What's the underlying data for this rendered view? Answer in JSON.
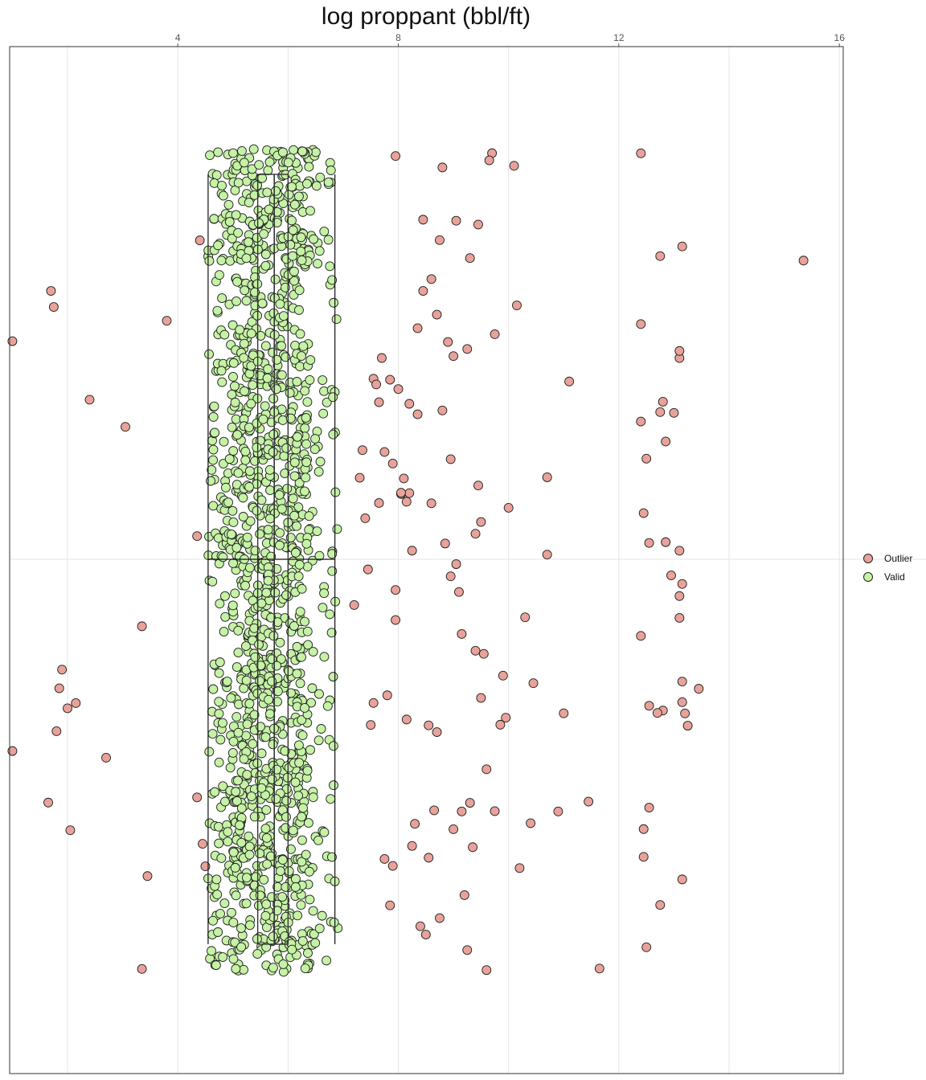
{
  "chart_data": {
    "type": "scatter",
    "title": "log proppant (bbl/ft)",
    "xlabel": "",
    "ylabel": "",
    "xlim": [
      0.95,
      16.07
    ],
    "xticks": [
      4,
      8,
      12,
      16
    ],
    "axis_position": "top",
    "grid": true,
    "jitter": "vertical",
    "legend_position": "right",
    "series": [
      {
        "name": "Outlier",
        "color": "#e8a29a",
        "x": [
          1.85,
          2.4,
          1.9,
          3.35,
          2.0,
          2.15,
          1.7,
          3.45,
          1.8,
          2.05,
          2.7,
          3.05,
          1.65,
          1.75,
          3.35,
          1.0,
          3.8,
          4.35,
          4.5,
          4.45,
          4.4,
          4.35,
          1.0,
          7.35,
          7.55,
          7.75,
          7.85,
          7.9,
          8.05,
          8.15,
          8.3,
          8.45,
          8.6,
          8.8,
          8.95,
          9.05,
          9.25,
          9.4,
          9.6,
          9.75,
          10.0,
          10.2,
          10.4,
          7.65,
          7.95,
          8.25,
          8.55,
          8.75,
          9.15,
          9.45,
          9.95,
          7.3,
          7.5,
          7.7,
          7.9,
          8.1,
          8.2,
          8.4,
          8.6,
          8.8,
          9.0,
          9.3,
          9.5,
          9.7,
          7.6,
          7.85,
          8.05,
          8.35,
          8.65,
          8.85,
          9.1,
          9.35,
          9.55,
          9.85,
          10.1,
          7.2,
          7.4,
          7.45,
          7.8,
          8.0,
          8.25,
          8.5,
          8.7,
          8.95,
          9.2,
          9.4,
          9.65,
          9.9,
          10.45,
          10.7,
          10.9,
          11.0,
          11.1,
          11.45,
          11.65,
          10.7,
          10.15,
          10.3,
          7.55,
          7.75,
          7.95,
          8.15,
          8.45,
          8.75,
          9.05,
          9.25,
          9.5,
          9.75,
          8.2,
          8.55,
          8.9,
          9.15,
          9.45,
          7.65,
          7.95,
          8.35,
          8.7,
          9.0,
          9.3,
          9.6,
          12.4,
          12.45,
          12.8,
          12.4,
          13.1,
          13.15,
          13.15,
          13.2,
          13.15,
          13.1,
          13.45,
          12.75,
          12.8,
          12.75,
          13.1,
          12.4,
          12.55,
          12.45,
          13.0,
          12.7,
          12.85,
          12.5,
          13.1,
          12.4,
          13.15,
          13.1,
          12.5,
          13.25,
          12.95,
          12.45,
          12.55,
          12.75,
          12.85,
          12.55,
          15.35,
          13.15
        ]
      },
      {
        "name": "Valid",
        "color": "#c5f2a5",
        "x": [
          4.6,
          4.65,
          4.7,
          4.75,
          4.8,
          4.85,
          4.9,
          4.95,
          5.0,
          5.05,
          5.1,
          5.15,
          5.2,
          5.25,
          5.3,
          5.35,
          5.4,
          5.45,
          5.5,
          5.55,
          5.6,
          5.65,
          5.7,
          5.75,
          5.8,
          5.85,
          5.9,
          5.95,
          6.0,
          6.05,
          6.1,
          6.15,
          6.2,
          6.25,
          6.3,
          6.35,
          6.4,
          6.5,
          6.6,
          6.75,
          6.85,
          5.0,
          5.1,
          5.2,
          5.3,
          5.4,
          5.5,
          5.6,
          5.7,
          5.8,
          5.9,
          6.0,
          6.1,
          6.2,
          6.3,
          5.05,
          5.15,
          5.25,
          5.35,
          5.45,
          5.55,
          5.65,
          5.75,
          5.85,
          5.95,
          6.05,
          6.15,
          6.25,
          6.35
        ]
      }
    ],
    "boxplot": {
      "whisker_low": 4.55,
      "q1": 5.45,
      "median": 5.75,
      "q3": 6.0,
      "whisker_high": 6.85
    }
  },
  "legend": [
    {
      "label": "Outlier",
      "color": "#e8a29a"
    },
    {
      "label": "Valid",
      "color": "#c5f2a5"
    }
  ],
  "tick_labels": [
    "4",
    "8",
    "12",
    "16"
  ]
}
